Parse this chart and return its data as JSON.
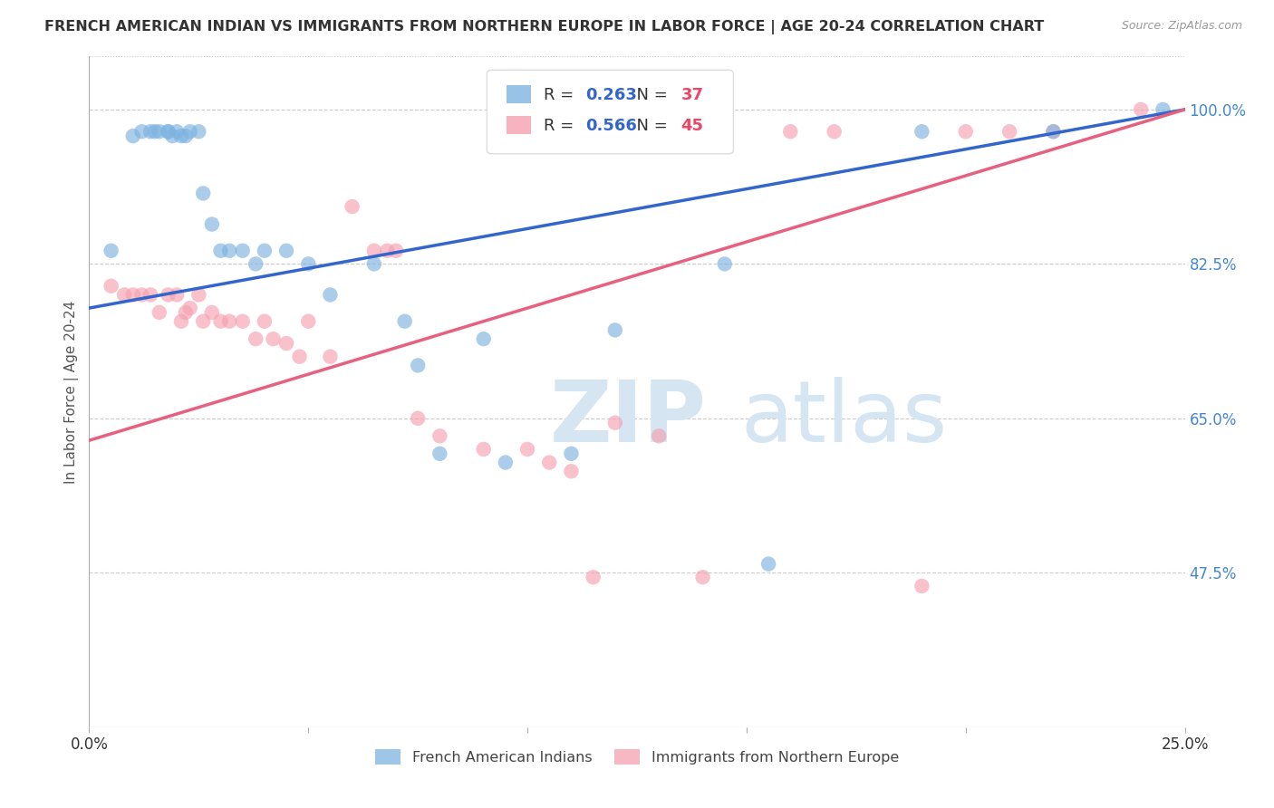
{
  "title": "FRENCH AMERICAN INDIAN VS IMMIGRANTS FROM NORTHERN EUROPE IN LABOR FORCE | AGE 20-24 CORRELATION CHART",
  "source": "Source: ZipAtlas.com",
  "ylabel": "In Labor Force | Age 20-24",
  "xlim": [
    0.0,
    0.25
  ],
  "ylim": [
    0.3,
    1.06
  ],
  "xticks": [
    0.0,
    0.05,
    0.1,
    0.15,
    0.2,
    0.25
  ],
  "xticklabels": [
    "0.0%",
    "",
    "",
    "",
    "",
    "25.0%"
  ],
  "yticks_right": [
    1.0,
    0.825,
    0.65,
    0.475
  ],
  "ytick_labels_right": [
    "100.0%",
    "82.5%",
    "65.0%",
    "47.5%"
  ],
  "blue_R": 0.263,
  "blue_N": 37,
  "pink_R": 0.566,
  "pink_N": 45,
  "blue_color": "#7EB3E0",
  "pink_color": "#F5A0B0",
  "blue_line_color": "#3366CC",
  "pink_line_color": "#E86080",
  "blue_label": "French American Indians",
  "pink_label": "Immigrants from Northern Europe",
  "watermark_zip": "ZIP",
  "watermark_atlas": "atlas",
  "watermark_color": "#D5E5F2",
  "background_color": "#FFFFFF",
  "grid_color": "#CCCCCC",
  "title_color": "#333333",
  "axis_label_color": "#555555",
  "right_tick_color": "#4488CC",
  "blue_x": [
    0.005,
    0.01,
    0.012,
    0.014,
    0.015,
    0.016,
    0.018,
    0.018,
    0.019,
    0.02,
    0.021,
    0.022,
    0.023,
    0.025,
    0.026,
    0.028,
    0.03,
    0.032,
    0.035,
    0.038,
    0.04,
    0.045,
    0.05,
    0.055,
    0.065,
    0.072,
    0.075,
    0.08,
    0.09,
    0.095,
    0.11,
    0.12,
    0.145,
    0.155,
    0.19,
    0.22,
    0.245
  ],
  "blue_y": [
    0.84,
    0.97,
    0.975,
    0.975,
    0.975,
    0.975,
    0.975,
    0.975,
    0.97,
    0.975,
    0.97,
    0.97,
    0.975,
    0.975,
    0.905,
    0.87,
    0.84,
    0.84,
    0.84,
    0.825,
    0.84,
    0.84,
    0.825,
    0.79,
    0.825,
    0.76,
    0.71,
    0.61,
    0.74,
    0.6,
    0.61,
    0.75,
    0.825,
    0.485,
    0.975,
    0.975,
    1.0
  ],
  "pink_x": [
    0.005,
    0.008,
    0.01,
    0.012,
    0.014,
    0.016,
    0.018,
    0.02,
    0.021,
    0.022,
    0.023,
    0.025,
    0.026,
    0.028,
    0.03,
    0.032,
    0.035,
    0.038,
    0.04,
    0.042,
    0.045,
    0.048,
    0.05,
    0.055,
    0.06,
    0.065,
    0.068,
    0.07,
    0.075,
    0.08,
    0.09,
    0.1,
    0.105,
    0.11,
    0.115,
    0.12,
    0.13,
    0.14,
    0.16,
    0.17,
    0.19,
    0.2,
    0.21,
    0.22,
    0.24
  ],
  "pink_y": [
    0.8,
    0.79,
    0.79,
    0.79,
    0.79,
    0.77,
    0.79,
    0.79,
    0.76,
    0.77,
    0.775,
    0.79,
    0.76,
    0.77,
    0.76,
    0.76,
    0.76,
    0.74,
    0.76,
    0.74,
    0.735,
    0.72,
    0.76,
    0.72,
    0.89,
    0.84,
    0.84,
    0.84,
    0.65,
    0.63,
    0.615,
    0.615,
    0.6,
    0.59,
    0.47,
    0.645,
    0.63,
    0.47,
    0.975,
    0.975,
    0.46,
    0.975,
    0.975,
    0.975,
    1.0
  ],
  "blue_line_x0": 0.0,
  "blue_line_y0": 0.775,
  "blue_line_x1": 0.25,
  "blue_line_y1": 1.0,
  "pink_line_x0": 0.0,
  "pink_line_y0": 0.625,
  "pink_line_x1": 0.25,
  "pink_line_y1": 1.0
}
